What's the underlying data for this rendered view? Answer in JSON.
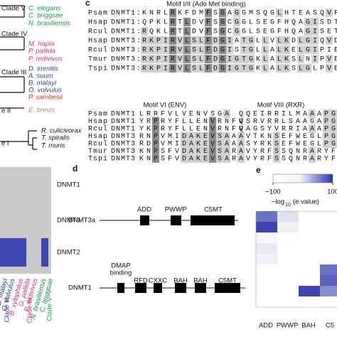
{
  "tree": {
    "clades": [
      {
        "label": "Clade V",
        "y": 12,
        "species": [
          {
            "name": "C. elegans",
            "color": "#1a9641"
          },
          {
            "name": "C. briggsae",
            "color": "#1a9641"
          },
          {
            "name": "N. brasiliensis",
            "color": "#1a9641"
          }
        ]
      },
      {
        "label": "Clade IV",
        "y": 48,
        "species": [
          {
            "name": "M. hapla",
            "color": "#d6307a"
          },
          {
            "name": "P. pallida",
            "color": "#d6307a"
          },
          {
            "name": "P. redivivus",
            "color": "#d6307a"
          }
        ]
      },
      {
        "label": "Clade III",
        "y": 102,
        "species": [
          {
            "name": "D. immitis",
            "color": "#2c3e9e"
          },
          {
            "name": "A. suum",
            "color": "#2c3e9e"
          },
          {
            "name": "B. malayi",
            "color": "#2c3e9e"
          },
          {
            "name": "O. volvulus",
            "color": "#2c3e9e"
          },
          {
            "name": "P. sambesii",
            "color": "#d62728"
          }
        ]
      },
      {
        "label": "e II",
        "y": 156,
        "species": [
          {
            "name": "E. brevis",
            "color": "#b08a5e"
          }
        ]
      },
      {
        "label": "e I",
        "y": 202,
        "species": [
          {
            "name": "R. culicivorax",
            "color": "#111111"
          },
          {
            "name": "T. spiralis",
            "color": "#111111"
          },
          {
            "name": "T. muris",
            "color": "#111111"
          }
        ]
      }
    ]
  },
  "panel_c": {
    "label": "c",
    "separator": ":",
    "motif_top": "Motif I/II (Ado Met binding)",
    "rows_top": [
      {
        "species": "Psam",
        "gene": "DNMT1",
        "seq": "KNRLRKFDMFSGAGGMSQGLHTEASQVFSKHAE"
      },
      {
        "species": "Hsap",
        "gene": "DNMT1",
        "seq": "QPKLRTLDVFSGCGGLSEGFHQAGISDTLWAIE"
      },
      {
        "species": "Rcul",
        "gene": "DNMT1",
        "seq": "RQKLRTLDVFSGCGGLSEGFHQAGISETLWAVE"
      },
      {
        "species": "Hsap",
        "gene": "DNMT3",
        "seq": "RKPIRVLSLFDGIATGLLVLKDLGIQVDRYIAS"
      },
      {
        "species": "Rcul",
        "gene": "DNMT3",
        "seq": "RKPIRVLSLFDGISTGLLALKELGIPIERYIAS"
      },
      {
        "species": "Tmur",
        "gene": "DNMT3",
        "seq": "RKPIRVLSLFDGIGTGKLALKSLNIPVEKYIAS"
      },
      {
        "species": "Tspi",
        "gene": "DNMT3",
        "seq": "RKPIRVLSLFDGIGTGKLALKSLGLPVEHYIAS"
      }
    ],
    "motif_vi": "Motif VI (ENV)",
    "motif_viii": "Motif VIII (RXR)",
    "rows_bottom": [
      {
        "species": "Psam",
        "gene": "DNMT1",
        "seq_vi": "LRRFVLVENVSGA",
        "seq_viii": "QQEIRRILMAAAPG"
      },
      {
        "species": "Hsap",
        "gene": "DNMT1",
        "seq_vi": "YRPRYFLLENVRNFV",
        "seq_viii": "QSRVRRLSAAGAPG"
      },
      {
        "species": "Rcul",
        "gene": "DNMT1",
        "seq_vi": "YKPRYFLLENVRNFV",
        "seq_viii": "QAGSYVRRIAAAPG"
      },
      {
        "species": "Hsap",
        "gene": "DNMT3",
        "seq_vi": "RNPVMIDAKEVSAA",
        "seq_viii": "AVTKNSEFWEGLPG"
      },
      {
        "species": "Rcul",
        "gene": "DNMT3",
        "seq_vi": "RDPVMIDAKEVSAA",
        "seq_viii": "ASYRKSEFWEGLPG"
      },
      {
        "species": "Tmur",
        "gene": "DNMT3",
        "seq_vi": "KNPSFVDAKEVSAR",
        "seq_viii": "AVYRFSSQNRARYF"
      },
      {
        "species": "Tspi",
        "gene": "DNMT3",
        "seq_vi": "KNPSFVDAKEVSAR",
        "seq_viii": "AVYRFSSQNRARYF"
      }
    ]
  },
  "presence": {
    "rows": [
      "DNMT1",
      "DNMT3",
      "DNMT2"
    ],
    "species": [
      {
        "name": "B. malayi",
        "color": "#2c3e9e"
      },
      {
        "name": "O. volvulus",
        "color": "#2c3e9e"
      },
      {
        "name": "B. xylophilus",
        "color": "#d6307a"
      },
      {
        "name": "G. pallida",
        "color": "#d6307a"
      },
      {
        "name": "P. redivivus",
        "color": "#d6307a"
      },
      {
        "name": "N. brasiliensis",
        "color": "#1a9641"
      },
      {
        "name": "C. briggsae",
        "color": "#1a9641"
      }
    ],
    "clades": [
      {
        "name": "Clade III",
        "color": "#2c3e9e"
      },
      {
        "name": "Clade IV",
        "color": "#d6307a"
      },
      {
        "name": "Clade V",
        "color": "#1a9641"
      }
    ]
  },
  "panel_d": {
    "label": "d",
    "dnmt3a": {
      "name": "DNMT3a",
      "domains": [
        "ADD",
        "PWWP",
        "C5MT"
      ]
    },
    "dnmt1": {
      "name": "DNMT1",
      "domains": [
        "DMAP",
        "binding",
        "RFD",
        "CXXC",
        "BAH",
        "BAH",
        "C5MT"
      ]
    }
  },
  "panel_e": {
    "label": "e",
    "colorbar": {
      "lim": [
        -100,
        100
      ],
      "ticks": [
        {
          "value": -100,
          "label": "−100"
        },
        100
      ],
      "color": "#2b35a8"
    },
    "title_main": "−log",
    "title_sub": "10",
    "title_rest": "(e value)",
    "columns": [
      "ADD",
      "PWWP",
      "BAH",
      "C5"
    ],
    "values": [
      [
        60,
        -40,
        -100,
        -100
      ],
      [
        90,
        -60,
        -100,
        -100
      ],
      [
        -70,
        -90,
        -100,
        -100
      ],
      [
        -50,
        -100,
        -100,
        -100
      ],
      [
        -60,
        -100,
        -100,
        -100
      ],
      [
        -100,
        -100,
        -100,
        60
      ],
      [
        -100,
        -100,
        -100,
        70
      ],
      [
        -100,
        -100,
        90,
        40
      ],
      [
        -100,
        -100,
        -100,
        -100
      ]
    ]
  }
}
